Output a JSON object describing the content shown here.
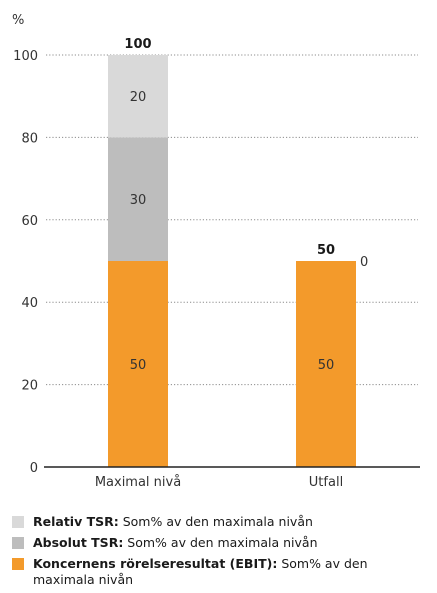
{
  "chart_data": {
    "type": "bar",
    "stacked": true,
    "ylabel": "%",
    "ylim": [
      0,
      100
    ],
    "yticks": [
      0,
      20,
      40,
      60,
      80,
      100
    ],
    "grid": true,
    "categories": [
      "Maximal nivå",
      "Utfall"
    ],
    "totals": [
      100,
      50
    ],
    "series": [
      {
        "name": "Koncernens rörelseresultat (EBIT)",
        "values": [
          50,
          50
        ],
        "color": "#f39a2b",
        "label_color": "#333333"
      },
      {
        "name": "Absolut TSR",
        "values": [
          30,
          0
        ],
        "color": "#bdbdbd",
        "label_color": "#333333"
      },
      {
        "name": "Relativ TSR",
        "values": [
          20,
          0
        ],
        "color": "#d9d9d9",
        "label_color": "#333333"
      }
    ],
    "extra_labels": [
      {
        "category": "Utfall",
        "text": "0"
      }
    ]
  },
  "legend": [
    {
      "name": "Relativ TSR:",
      "desc": " Som% av den maximala nivån",
      "color": "#d9d9d9"
    },
    {
      "name": "Absolut TSR:",
      "desc": " Som% av den maximala nivån",
      "color": "#bdbdbd"
    },
    {
      "name": "Koncernens rörelseresultat (EBIT):",
      "desc": " Som% av den maximala nivån",
      "color": "#f39a2b"
    }
  ]
}
